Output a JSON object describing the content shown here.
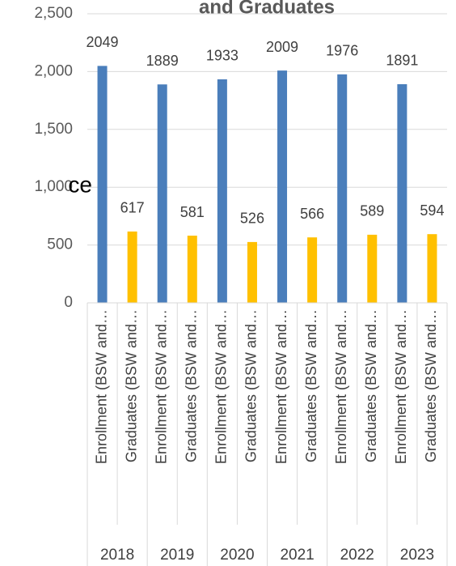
{
  "chart_data": {
    "type": "bar",
    "title": "and Graduates",
    "y_label": "ce",
    "categories": [
      "Enrollment (BSW and…",
      "Graduates (BSW and…",
      "Enrollment (BSW and…",
      "Graduates (BSW and…",
      "Enrollment (BSW and…",
      "Graduates (BSW and…",
      "Enrollment (BSW and…",
      "Graduates (BSW and…",
      "Enrollment (BSW and…",
      "Graduates (BSW and…",
      "Enrollment (BSW and…",
      "Graduates (BSW and…"
    ],
    "groups": [
      "2018",
      "2019",
      "2020",
      "2021",
      "2022",
      "2023"
    ],
    "values": [
      2049,
      617,
      1889,
      581,
      1933,
      526,
      2009,
      566,
      1976,
      589,
      1891,
      594
    ],
    "colors": [
      "#4a7ebb",
      "#ffc000"
    ],
    "ylim": [
      0,
      2500
    ],
    "yticks": [
      0,
      500,
      {
        "value": 1000,
        "label": "1,000"
      },
      {
        "value": 1500,
        "label": "1,500"
      },
      {
        "value": 2000,
        "label": "2,000"
      },
      {
        "value": 2500,
        "label": "2,500"
      }
    ],
    "grid": true
  }
}
